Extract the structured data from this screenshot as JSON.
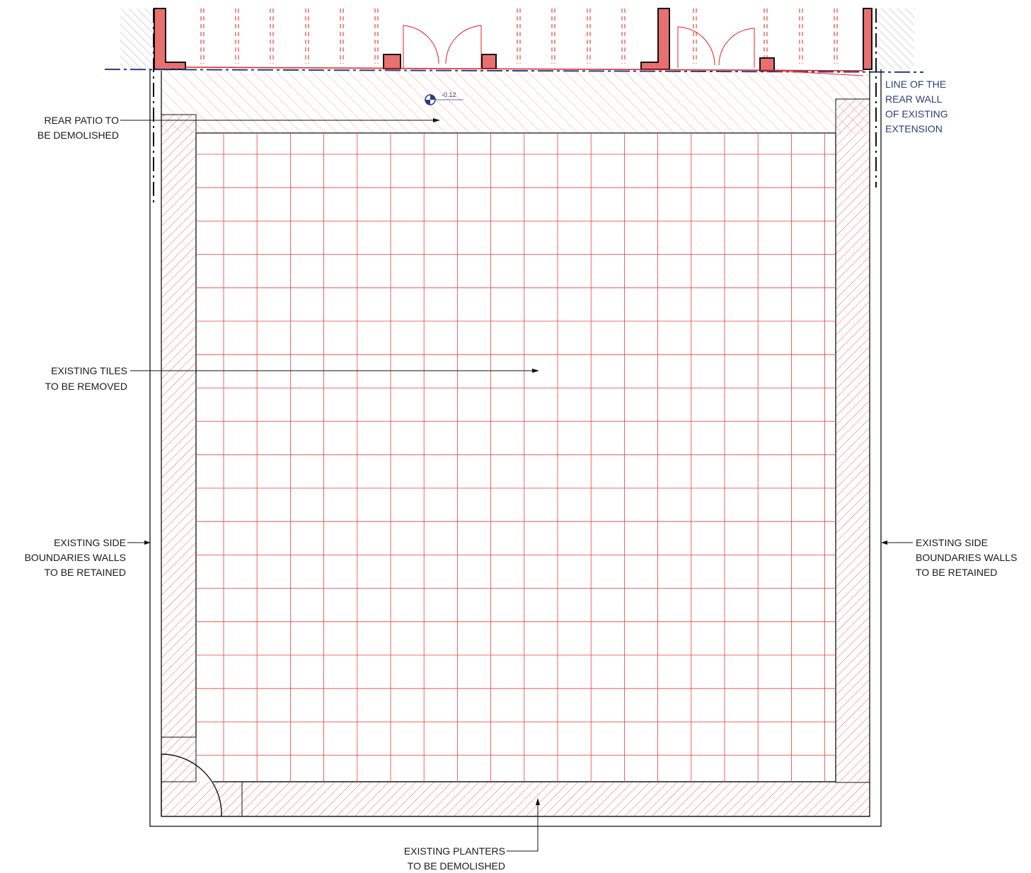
{
  "labels": {
    "rear_patio": [
      "REAR PATIO TO",
      "BE DEMOLISHED"
    ],
    "existing_tiles": [
      "EXISTING TILES",
      "TO BE REMOVED"
    ],
    "side_walls_left": [
      "EXISTING SIDE",
      "BOUNDARIES WALLS",
      "TO BE RETAINED"
    ],
    "side_walls_right": [
      "EXISTING SIDE",
      "BOUNDARIES WALLS",
      "TO BE RETAINED"
    ],
    "planters": [
      "EXISTING PLANTERS",
      "TO BE DEMOLISHED"
    ],
    "rear_wall_line": [
      "LINE OF THE",
      "REAR WALL",
      "OF EXISTING",
      "EXTENSION"
    ],
    "level_marker": "-0.12"
  },
  "colors": {
    "demolish": "#e02020",
    "wall_fill": "#e87070",
    "outline": "#111111",
    "rear_wall_line": "#2c3e7a"
  }
}
